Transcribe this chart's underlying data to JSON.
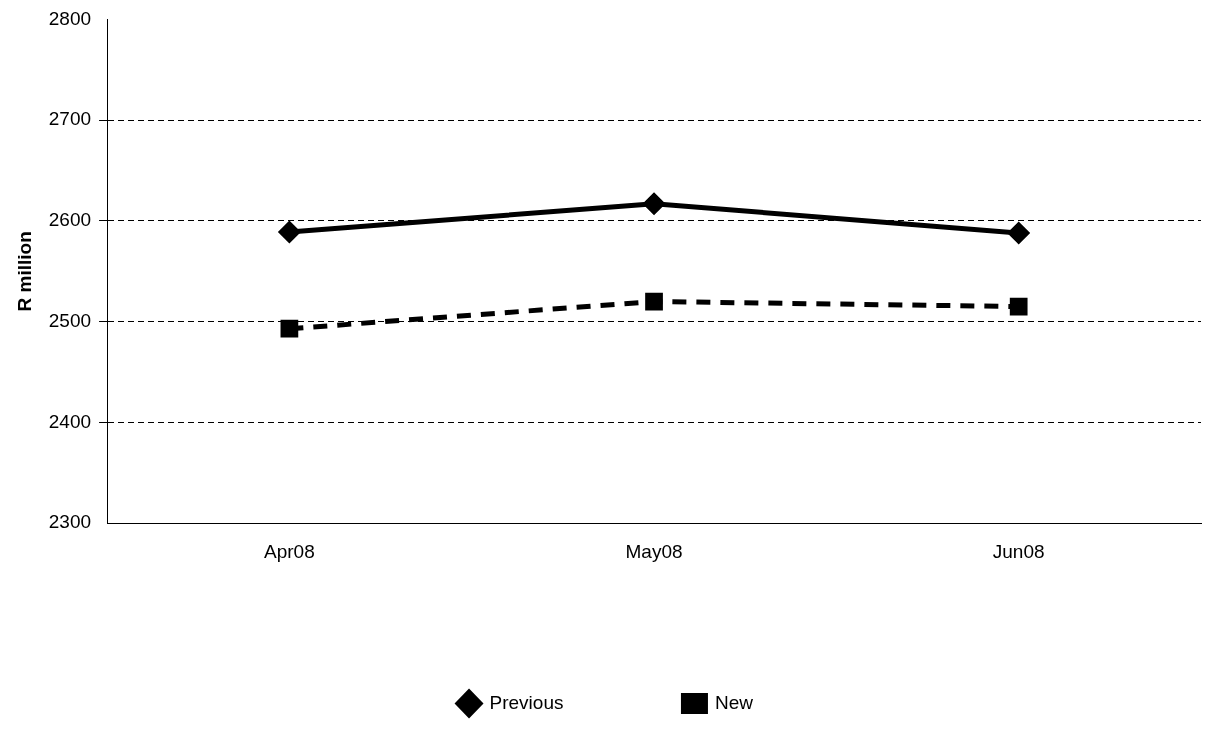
{
  "chart_data": {
    "type": "line",
    "ylabel": "R million",
    "categories": [
      "Apr08",
      "May08",
      "Jun08"
    ],
    "series": [
      {
        "name": "Previous",
        "color": "#000000",
        "values": [
          2589,
          2617,
          2588
        ],
        "marker": "diamond",
        "line_style": "solid"
      },
      {
        "name": "New",
        "color": "#000000",
        "values": [
          2493,
          2520,
          2515
        ],
        "marker": "square",
        "line_style": "dashed"
      }
    ],
    "ylim": [
      2300,
      2800
    ],
    "yticks": [
      2300,
      2400,
      2500,
      2600,
      2700,
      2800
    ],
    "grid": "y",
    "legend": "bottom"
  }
}
